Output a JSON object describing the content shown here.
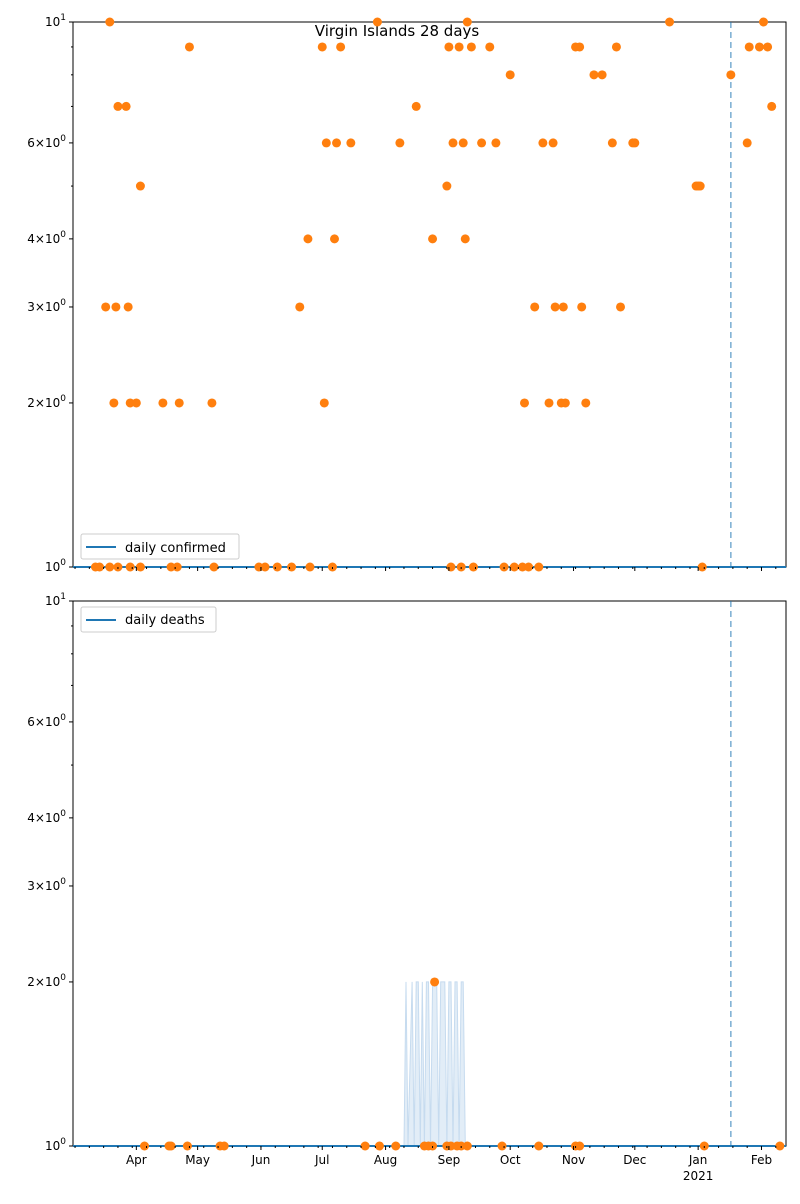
{
  "figure": {
    "title": "Virgin Islands 28 days"
  },
  "colors": {
    "line": "#1f77b4",
    "points": "#ff7f0e",
    "vline": "#1f77b4",
    "fill": "#c6dbef"
  },
  "shared_x": {
    "start": "2020-03-01",
    "end": "2021-02-13",
    "month_ticks": [
      {
        "date": "2020-04-01",
        "label": "Apr"
      },
      {
        "date": "2020-05-01",
        "label": "May"
      },
      {
        "date": "2020-06-01",
        "label": "Jun"
      },
      {
        "date": "2020-07-01",
        "label": "Jul"
      },
      {
        "date": "2020-08-01",
        "label": "Aug"
      },
      {
        "date": "2020-09-01",
        "label": "Sep"
      },
      {
        "date": "2020-10-01",
        "label": "Oct"
      },
      {
        "date": "2020-11-01",
        "label": "Nov"
      },
      {
        "date": "2020-12-01",
        "label": "Dec"
      },
      {
        "date": "2021-01-01",
        "label": "Jan"
      },
      {
        "date": "2021-02-01",
        "label": "Feb"
      }
    ],
    "year_label": {
      "date": "2021-01-01",
      "label": "2021"
    },
    "vline_date": "2021-01-17"
  },
  "chart_data": [
    {
      "type": "scatter",
      "title": "Virgin Islands 28 days",
      "yscale": "log",
      "ylim": [
        1,
        10
      ],
      "ytick_labels": [
        "10^0",
        "2×10^0",
        "3×10^0",
        "4×10^0",
        "6×10^0",
        "10^1"
      ],
      "legend": {
        "label": "daily confirmed",
        "placement": "lower-left"
      },
      "series": [
        {
          "name": "daily confirmed",
          "kind": "line",
          "points": [
            [
              "2020-03-01",
              1
            ],
            [
              "2021-02-13",
              1
            ]
          ]
        },
        {
          "kind": "scatter",
          "points": [
            [
              "2020-03-12",
              1
            ],
            [
              "2020-03-14",
              1
            ],
            [
              "2020-03-17",
              3
            ],
            [
              "2020-03-19",
              10
            ],
            [
              "2020-03-19",
              1
            ],
            [
              "2020-03-21",
              2
            ],
            [
              "2020-03-22",
              3
            ],
            [
              "2020-03-23",
              7
            ],
            [
              "2020-03-23",
              1
            ],
            [
              "2020-03-27",
              7
            ],
            [
              "2020-03-28",
              3
            ],
            [
              "2020-03-29",
              2
            ],
            [
              "2020-03-29",
              1
            ],
            [
              "2020-04-01",
              2
            ],
            [
              "2020-04-03",
              5
            ],
            [
              "2020-04-03",
              1
            ],
            [
              "2020-04-14",
              2
            ],
            [
              "2020-04-18",
              1
            ],
            [
              "2020-04-21",
              1
            ],
            [
              "2020-04-22",
              2
            ],
            [
              "2020-04-27",
              9
            ],
            [
              "2020-05-08",
              2
            ],
            [
              "2020-05-09",
              1
            ],
            [
              "2020-05-31",
              1
            ],
            [
              "2020-06-03",
              1
            ],
            [
              "2020-06-09",
              1
            ],
            [
              "2020-06-16",
              1
            ],
            [
              "2020-06-20",
              3
            ],
            [
              "2020-06-24",
              4
            ],
            [
              "2020-06-25",
              1
            ],
            [
              "2020-07-01",
              9
            ],
            [
              "2020-07-02",
              2
            ],
            [
              "2020-07-03",
              6
            ],
            [
              "2020-07-06",
              1
            ],
            [
              "2020-07-07",
              4
            ],
            [
              "2020-07-08",
              6
            ],
            [
              "2020-07-10",
              9
            ],
            [
              "2020-07-15",
              6
            ],
            [
              "2020-07-28",
              10
            ],
            [
              "2020-08-08",
              6
            ],
            [
              "2020-08-16",
              7
            ],
            [
              "2020-08-24",
              4
            ],
            [
              "2020-08-31",
              5
            ],
            [
              "2020-09-01",
              9
            ],
            [
              "2020-09-02",
              1
            ],
            [
              "2020-09-03",
              6
            ],
            [
              "2020-09-06",
              9
            ],
            [
              "2020-09-07",
              1
            ],
            [
              "2020-09-08",
              6
            ],
            [
              "2020-09-09",
              4
            ],
            [
              "2020-09-10",
              10
            ],
            [
              "2020-09-12",
              9
            ],
            [
              "2020-09-13",
              1
            ],
            [
              "2020-09-17",
              6
            ],
            [
              "2020-09-21",
              9
            ],
            [
              "2020-09-24",
              6
            ],
            [
              "2020-09-28",
              1
            ],
            [
              "2020-10-01",
              8
            ],
            [
              "2020-10-03",
              1
            ],
            [
              "2020-10-07",
              1
            ],
            [
              "2020-10-08",
              2
            ],
            [
              "2020-10-10",
              1
            ],
            [
              "2020-10-13",
              3
            ],
            [
              "2020-10-15",
              1
            ],
            [
              "2020-10-17",
              6
            ],
            [
              "2020-10-20",
              2
            ],
            [
              "2020-10-22",
              6
            ],
            [
              "2020-10-23",
              3
            ],
            [
              "2020-10-26",
              2
            ],
            [
              "2020-10-27",
              3
            ],
            [
              "2020-10-28",
              2
            ],
            [
              "2020-11-02",
              9
            ],
            [
              "2020-11-04",
              9
            ],
            [
              "2020-11-05",
              3
            ],
            [
              "2020-11-07",
              2
            ],
            [
              "2020-11-11",
              8
            ],
            [
              "2020-11-15",
              8
            ],
            [
              "2020-11-20",
              6
            ],
            [
              "2020-11-22",
              9
            ],
            [
              "2020-11-24",
              3
            ],
            [
              "2020-11-30",
              6
            ],
            [
              "2020-12-01",
              6
            ],
            [
              "2020-12-18",
              10
            ],
            [
              "2020-12-31",
              5
            ],
            [
              "2021-01-01",
              5
            ],
            [
              "2021-01-02",
              5
            ],
            [
              "2021-01-03",
              1
            ],
            [
              "2021-01-17",
              8
            ],
            [
              "2021-01-25",
              6
            ],
            [
              "2021-01-26",
              9
            ],
            [
              "2021-01-31",
              9
            ],
            [
              "2021-02-02",
              10
            ],
            [
              "2021-02-04",
              9
            ],
            [
              "2021-02-06",
              7
            ]
          ]
        }
      ]
    },
    {
      "type": "scatter",
      "yscale": "log",
      "ylim": [
        1,
        10
      ],
      "ytick_labels": [
        "10^0",
        "2×10^0",
        "3×10^0",
        "4×10^0",
        "6×10^0",
        "10^1"
      ],
      "legend": {
        "label": "daily deaths",
        "placement": "upper-left"
      },
      "series": [
        {
          "name": "daily deaths",
          "kind": "line",
          "points": [
            [
              "2020-03-01",
              1
            ],
            [
              "2021-02-13",
              1
            ]
          ]
        },
        {
          "kind": "band",
          "points": [
            [
              "2020-08-10",
              1
            ],
            [
              "2020-08-11",
              2
            ],
            [
              "2020-08-12",
              1
            ],
            [
              "2020-08-14",
              2
            ],
            [
              "2020-08-15",
              1
            ],
            [
              "2020-08-16",
              2
            ],
            [
              "2020-08-17",
              2
            ],
            [
              "2020-08-18",
              1
            ],
            [
              "2020-08-19",
              2
            ],
            [
              "2020-08-20",
              1
            ],
            [
              "2020-08-21",
              2
            ],
            [
              "2020-08-22",
              2
            ],
            [
              "2020-08-23",
              1
            ],
            [
              "2020-08-24",
              2
            ],
            [
              "2020-08-25",
              2
            ],
            [
              "2020-08-26",
              2
            ],
            [
              "2020-08-27",
              1
            ],
            [
              "2020-08-28",
              2
            ],
            [
              "2020-08-29",
              2
            ],
            [
              "2020-08-30",
              2
            ],
            [
              "2020-08-31",
              1
            ],
            [
              "2020-09-01",
              2
            ],
            [
              "2020-09-02",
              2
            ],
            [
              "2020-09-03",
              1
            ],
            [
              "2020-09-04",
              2
            ],
            [
              "2020-09-05",
              2
            ],
            [
              "2020-09-06",
              1
            ],
            [
              "2020-09-07",
              2
            ],
            [
              "2020-09-08",
              2
            ],
            [
              "2020-09-09",
              1
            ]
          ]
        },
        {
          "kind": "scatter",
          "points": [
            [
              "2020-04-05",
              1
            ],
            [
              "2020-04-17",
              1
            ],
            [
              "2020-04-18",
              1
            ],
            [
              "2020-04-26",
              1
            ],
            [
              "2020-05-12",
              1
            ],
            [
              "2020-05-14",
              1
            ],
            [
              "2020-07-22",
              1
            ],
            [
              "2020-07-29",
              1
            ],
            [
              "2020-08-06",
              1
            ],
            [
              "2020-08-20",
              1
            ],
            [
              "2020-08-22",
              1
            ],
            [
              "2020-08-24",
              1
            ],
            [
              "2020-08-25",
              2
            ],
            [
              "2020-08-31",
              1
            ],
            [
              "2020-09-02",
              1
            ],
            [
              "2020-09-05",
              1
            ],
            [
              "2020-09-07",
              1
            ],
            [
              "2020-09-10",
              1
            ],
            [
              "2020-09-27",
              1
            ],
            [
              "2020-10-15",
              1
            ],
            [
              "2020-11-02",
              1
            ],
            [
              "2020-11-04",
              1
            ],
            [
              "2021-01-04",
              1
            ],
            [
              "2021-02-10",
              1
            ]
          ]
        }
      ]
    }
  ]
}
